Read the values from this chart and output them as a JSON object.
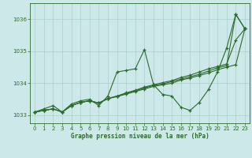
{
  "xlabel": "Graphe pression niveau de la mer (hPa)",
  "background_color": "#cce8e8",
  "line_color": "#2d6a2d",
  "grid_color": "#aacfcf",
  "ylim": [
    1032.75,
    1036.5
  ],
  "xlim": [
    -0.5,
    23.5
  ],
  "yticks": [
    1033,
    1034,
    1035,
    1036
  ],
  "xticks": [
    0,
    1,
    2,
    3,
    4,
    5,
    6,
    7,
    8,
    9,
    10,
    11,
    12,
    13,
    14,
    15,
    16,
    17,
    18,
    19,
    20,
    21,
    22,
    23
  ],
  "series": [
    [
      1033.1,
      1033.2,
      1033.3,
      1033.1,
      1033.35,
      1033.45,
      1033.5,
      1033.3,
      1033.6,
      1034.35,
      1034.4,
      1034.45,
      1035.05,
      1033.95,
      1033.65,
      1033.6,
      1033.25,
      1033.15,
      1033.4,
      1033.8,
      1034.35,
      1035.1,
      1036.15,
      1035.7
    ],
    [
      1033.1,
      1033.15,
      1033.2,
      1033.1,
      1033.3,
      1033.4,
      1033.45,
      1033.38,
      1033.52,
      1033.6,
      1033.7,
      1033.78,
      1033.88,
      1033.95,
      1034.02,
      1034.08,
      1034.18,
      1034.25,
      1034.35,
      1034.45,
      1034.52,
      1034.6,
      1035.35,
      1035.7
    ],
    [
      1033.1,
      1033.15,
      1033.2,
      1033.1,
      1033.3,
      1033.4,
      1033.45,
      1033.38,
      1033.52,
      1033.6,
      1033.68,
      1033.76,
      1033.85,
      1033.93,
      1033.98,
      1034.05,
      1034.13,
      1034.2,
      1034.28,
      1034.38,
      1034.48,
      1034.55,
      1036.15,
      1035.7
    ],
    [
      1033.1,
      1033.15,
      1033.2,
      1033.1,
      1033.3,
      1033.4,
      1033.45,
      1033.38,
      1033.52,
      1033.58,
      1033.66,
      1033.74,
      1033.82,
      1033.9,
      1033.95,
      1034.0,
      1034.1,
      1034.16,
      1034.24,
      1034.32,
      1034.42,
      1034.5,
      1034.58,
      1035.7
    ]
  ]
}
